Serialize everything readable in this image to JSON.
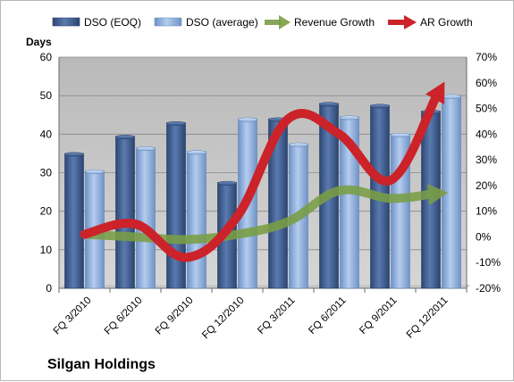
{
  "chart_data": {
    "type": "bar",
    "title": "Silgan Holdings",
    "ylabel": "Days",
    "categories": [
      "FQ 3/2010",
      "FQ 6/2010",
      "FQ 9/2010",
      "FQ 12/2010",
      "FQ 3/2011",
      "FQ 6/2011",
      "FQ 9/2011",
      "FQ 12/2011"
    ],
    "ylim": [
      0,
      60
    ],
    "yticks": [
      0,
      10,
      20,
      30,
      40,
      50,
      60
    ],
    "y2lim": [
      -20,
      70
    ],
    "y2ticks": [
      "-20%",
      "-10%",
      "0%",
      "10%",
      "20%",
      "30%",
      "40%",
      "50%",
      "60%",
      "70%"
    ],
    "y2ticks_values": [
      -20,
      -10,
      0,
      10,
      20,
      30,
      40,
      50,
      60,
      70
    ],
    "series": [
      {
        "name": "DSO (EOQ)",
        "kind": "bar",
        "axis": "left",
        "color": "#3d5a8c",
        "values": [
          35,
          39.5,
          43,
          27.5,
          44,
          48,
          47.5,
          46
        ]
      },
      {
        "name": "DSO (average)",
        "kind": "bar",
        "axis": "left",
        "color": "#8fb0dc",
        "values": [
          30.5,
          36.5,
          35.5,
          44,
          37.5,
          44.5,
          40,
          50
        ]
      },
      {
        "name": "Revenue Growth",
        "kind": "arrow",
        "axis": "right",
        "color": "#7a9e45",
        "values": [
          1,
          0,
          -1,
          1,
          6,
          18,
          15,
          17
        ]
      },
      {
        "name": "AR Growth",
        "kind": "arrow",
        "axis": "right",
        "color": "#cc2229",
        "values": [
          1,
          5,
          -8,
          8,
          46,
          40,
          22,
          58
        ]
      }
    ],
    "grid": true,
    "legend_position": "top",
    "bar_values_note": "bar order per category: DSO (EOQ) then DSO (average)"
  }
}
